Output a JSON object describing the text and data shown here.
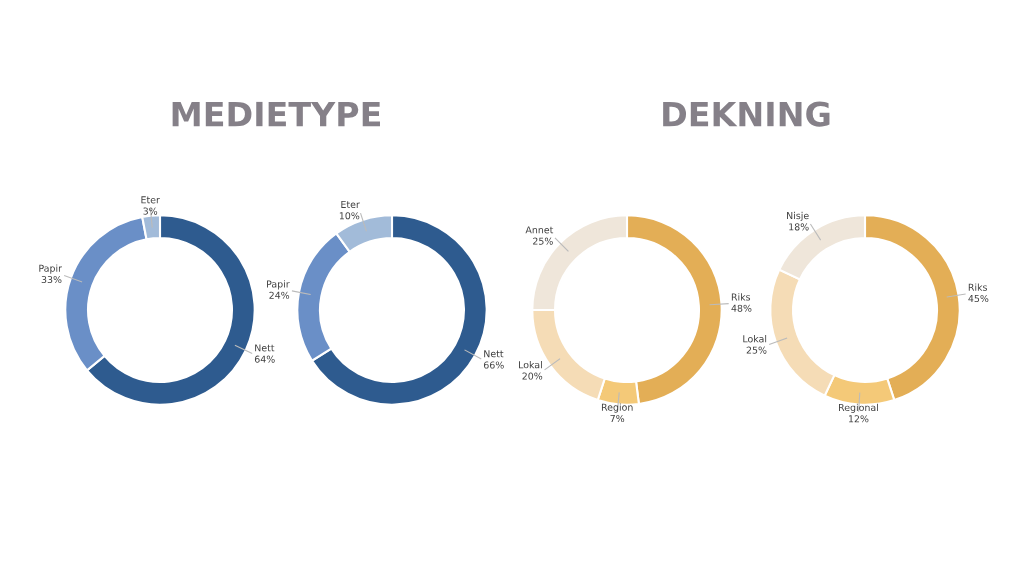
{
  "chart_data": [
    {
      "type": "donut",
      "title": "MEDIETYPE",
      "categories": [
        "Nett",
        "Papir",
        "Eter"
      ],
      "values": [
        64,
        33,
        3
      ],
      "value_labels": [
        "64%",
        "33%",
        "3%"
      ],
      "colors": [
        "#2e5b8f",
        "#6a8fc7",
        "#a2bbd9"
      ]
    },
    {
      "type": "donut",
      "categories": [
        "Nett",
        "Papir",
        "Eter"
      ],
      "values": [
        66,
        24,
        10
      ],
      "value_labels": [
        "66%",
        "24%",
        "10%"
      ],
      "colors": [
        "#2e5b8f",
        "#6a8fc7",
        "#a2bbd9"
      ]
    },
    {
      "type": "donut",
      "title": "DEKNING",
      "categories": [
        "Riks",
        "Region",
        "Lokal",
        "Annet"
      ],
      "values": [
        48,
        7,
        20,
        25
      ],
      "value_labels": [
        "48%",
        "7%",
        "20%",
        "25%"
      ],
      "colors": [
        "#e3ae56",
        "#f4c978",
        "#f5dcb6",
        "#efe6da"
      ]
    },
    {
      "type": "donut",
      "categories": [
        "Riks",
        "Regional",
        "Lokal",
        "Nisje"
      ],
      "values": [
        45,
        12,
        25,
        18
      ],
      "value_labels": [
        "45%",
        "12%",
        "25%",
        "18%"
      ],
      "colors": [
        "#e3ae56",
        "#f4c978",
        "#f5dcb6",
        "#efe6da"
      ]
    }
  ]
}
